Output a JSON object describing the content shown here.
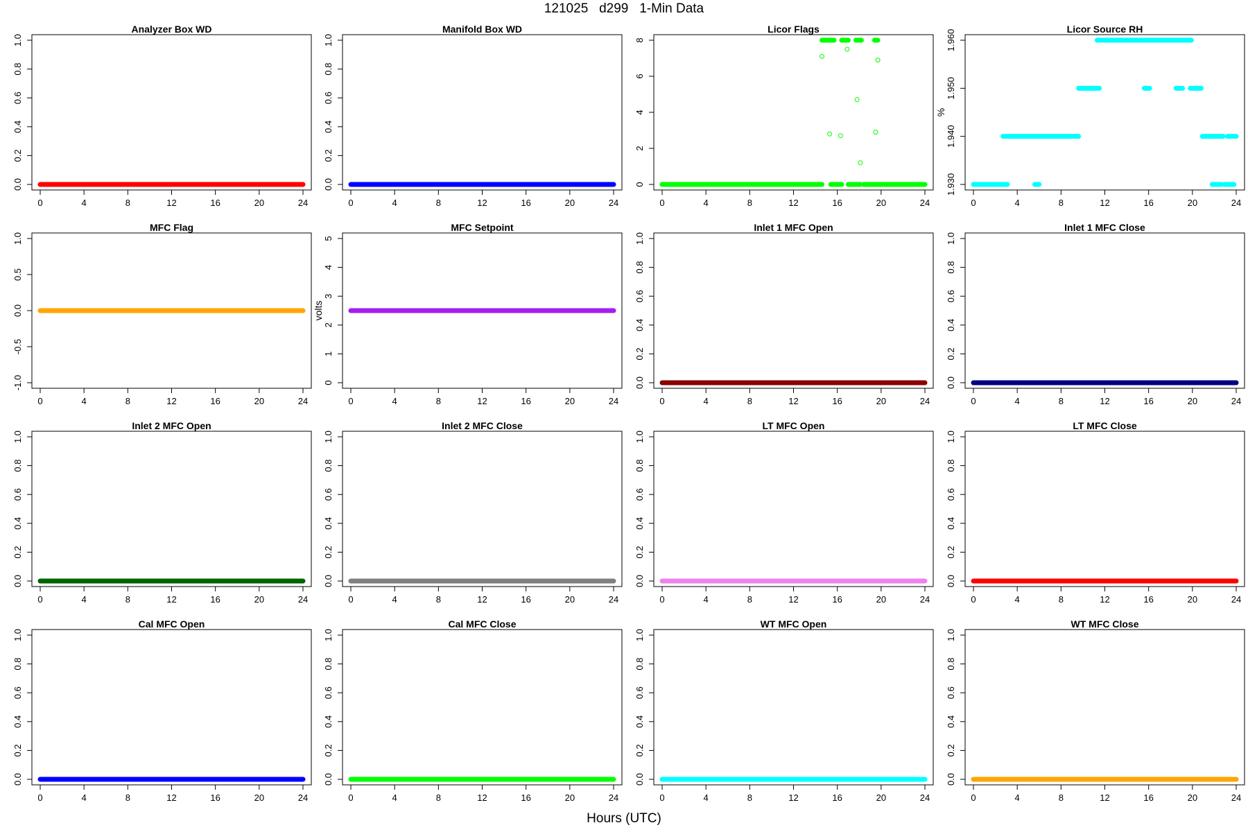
{
  "figure": {
    "title": "121025   d299   1-Min Data",
    "xlabel": "Hours (UTC)"
  },
  "chart_data": [
    {
      "type": "scatter",
      "title": "Analyzer Box WD",
      "ylabel": "",
      "color": "#ff0000",
      "xlim": [
        0,
        24
      ],
      "ylim": [
        0,
        1
      ],
      "xticks": [
        "0",
        "4",
        "8",
        "12",
        "16",
        "20",
        "24"
      ],
      "yticks": [
        "0.0",
        "0.2",
        "0.4",
        "0.6",
        "0.8",
        "1.0"
      ],
      "segments": [
        {
          "x": [
            0,
            24
          ],
          "y": 0
        }
      ],
      "points": []
    },
    {
      "type": "scatter",
      "title": "Manifold Box WD",
      "ylabel": "",
      "color": "#0000ff",
      "xlim": [
        0,
        24
      ],
      "ylim": [
        0,
        1
      ],
      "xticks": [
        "0",
        "4",
        "8",
        "12",
        "16",
        "20",
        "24"
      ],
      "yticks": [
        "0.0",
        "0.2",
        "0.4",
        "0.6",
        "0.8",
        "1.0"
      ],
      "segments": [
        {
          "x": [
            0,
            24
          ],
          "y": 0
        }
      ],
      "points": []
    },
    {
      "type": "scatter",
      "title": "Licor Flags",
      "ylabel": "",
      "color": "#00ff00",
      "xlim": [
        0,
        24
      ],
      "ylim": [
        0,
        8
      ],
      "xticks": [
        "0",
        "4",
        "8",
        "12",
        "16",
        "20",
        "24"
      ],
      "yticks": [
        "0",
        "2",
        "4",
        "6",
        "8"
      ],
      "segments": [
        {
          "x": [
            0,
            14.6
          ],
          "y": 0
        },
        {
          "x": [
            15.4,
            16.4
          ],
          "y": 0
        },
        {
          "x": [
            17.0,
            18.1
          ],
          "y": 0
        },
        {
          "x": [
            18.4,
            24
          ],
          "y": 0
        },
        {
          "x": [
            14.6,
            15.7
          ],
          "y": 8
        },
        {
          "x": [
            16.4,
            17.0
          ],
          "y": 8
        },
        {
          "x": [
            17.7,
            18.2
          ],
          "y": 8
        },
        {
          "x": [
            19.4,
            19.7
          ],
          "y": 8
        }
      ],
      "points": [
        {
          "x": 14.6,
          "y": 7.1
        },
        {
          "x": 15.3,
          "y": 2.8
        },
        {
          "x": 16.3,
          "y": 2.7
        },
        {
          "x": 16.9,
          "y": 7.5
        },
        {
          "x": 17.8,
          "y": 4.7
        },
        {
          "x": 18.1,
          "y": 1.2
        },
        {
          "x": 19.5,
          "y": 2.9
        },
        {
          "x": 19.7,
          "y": 6.9
        }
      ]
    },
    {
      "type": "scatter",
      "title": "Licor Source RH",
      "ylabel": "%",
      "color": "#00ffff",
      "xlim": [
        0,
        24
      ],
      "ylim": [
        1.93,
        1.96
      ],
      "xticks": [
        "0",
        "4",
        "8",
        "12",
        "16",
        "20",
        "24"
      ],
      "yticks": [
        "1.930",
        "1.940",
        "1.950",
        "1.960"
      ],
      "segments": [
        {
          "x": [
            0,
            3.1
          ],
          "y": 1.93
        },
        {
          "x": [
            5.6,
            6.0
          ],
          "y": 1.93
        },
        {
          "x": [
            21.8,
            22.6
          ],
          "y": 1.93
        },
        {
          "x": [
            22.9,
            23.8
          ],
          "y": 1.93
        },
        {
          "x": [
            2.7,
            9.6
          ],
          "y": 1.94
        },
        {
          "x": [
            20.9,
            22.2
          ],
          "y": 1.94
        },
        {
          "x": [
            22.4,
            22.8
          ],
          "y": 1.94
        },
        {
          "x": [
            23.2,
            24.0
          ],
          "y": 1.94
        },
        {
          "x": [
            9.6,
            11.5
          ],
          "y": 1.95
        },
        {
          "x": [
            15.6,
            16.1
          ],
          "y": 1.95
        },
        {
          "x": [
            18.5,
            19.1
          ],
          "y": 1.95
        },
        {
          "x": [
            19.8,
            20.8
          ],
          "y": 1.95
        },
        {
          "x": [
            11.3,
            19.9
          ],
          "y": 1.96
        }
      ],
      "points": []
    },
    {
      "type": "scatter",
      "title": "MFC Flag",
      "ylabel": "",
      "color": "#ffa500",
      "xlim": [
        0,
        24
      ],
      "ylim": [
        -1,
        1
      ],
      "xticks": [
        "0",
        "4",
        "8",
        "12",
        "16",
        "20",
        "24"
      ],
      "yticks": [
        "-1.0",
        "-0.5",
        "0.0",
        "0.5",
        "1.0"
      ],
      "segments": [
        {
          "x": [
            0,
            24
          ],
          "y": 0
        }
      ],
      "points": []
    },
    {
      "type": "scatter",
      "title": "MFC Setpoint",
      "ylabel": "volts",
      "color": "#a020f0",
      "xlim": [
        0,
        24
      ],
      "ylim": [
        0,
        5
      ],
      "xticks": [
        "0",
        "4",
        "8",
        "12",
        "16",
        "20",
        "24"
      ],
      "yticks": [
        "0",
        "1",
        "2",
        "3",
        "4",
        "5"
      ],
      "segments": [
        {
          "x": [
            0,
            24
          ],
          "y": 2.5
        }
      ],
      "points": []
    },
    {
      "type": "scatter",
      "title": "Inlet 1 MFC Open",
      "ylabel": "",
      "color": "#8b0000",
      "xlim": [
        0,
        24
      ],
      "ylim": [
        0,
        1
      ],
      "xticks": [
        "0",
        "4",
        "8",
        "12",
        "16",
        "20",
        "24"
      ],
      "yticks": [
        "0.0",
        "0.2",
        "0.4",
        "0.6",
        "0.8",
        "1.0"
      ],
      "segments": [
        {
          "x": [
            0,
            24
          ],
          "y": 0
        }
      ],
      "points": []
    },
    {
      "type": "scatter",
      "title": "Inlet 1 MFC Close",
      "ylabel": "",
      "color": "#000080",
      "xlim": [
        0,
        24
      ],
      "ylim": [
        0,
        1
      ],
      "xticks": [
        "0",
        "4",
        "8",
        "12",
        "16",
        "20",
        "24"
      ],
      "yticks": [
        "0.0",
        "0.2",
        "0.4",
        "0.6",
        "0.8",
        "1.0"
      ],
      "segments": [
        {
          "x": [
            0,
            24
          ],
          "y": 0
        }
      ],
      "points": []
    },
    {
      "type": "scatter",
      "title": "Inlet 2 MFC Open",
      "ylabel": "",
      "color": "#006400",
      "xlim": [
        0,
        24
      ],
      "ylim": [
        0,
        1
      ],
      "xticks": [
        "0",
        "4",
        "8",
        "12",
        "16",
        "20",
        "24"
      ],
      "yticks": [
        "0.0",
        "0.2",
        "0.4",
        "0.6",
        "0.8",
        "1.0"
      ],
      "segments": [
        {
          "x": [
            0,
            24
          ],
          "y": 0
        }
      ],
      "points": []
    },
    {
      "type": "scatter",
      "title": "Inlet 2 MFC Close",
      "ylabel": "",
      "color": "#808080",
      "xlim": [
        0,
        24
      ],
      "ylim": [
        0,
        1
      ],
      "xticks": [
        "0",
        "4",
        "8",
        "12",
        "16",
        "20",
        "24"
      ],
      "yticks": [
        "0.0",
        "0.2",
        "0.4",
        "0.6",
        "0.8",
        "1.0"
      ],
      "segments": [
        {
          "x": [
            0,
            24
          ],
          "y": 0
        }
      ],
      "points": []
    },
    {
      "type": "scatter",
      "title": "LT MFC Open",
      "ylabel": "",
      "color": "#ee82ee",
      "xlim": [
        0,
        24
      ],
      "ylim": [
        0,
        1
      ],
      "xticks": [
        "0",
        "4",
        "8",
        "12",
        "16",
        "20",
        "24"
      ],
      "yticks": [
        "0.0",
        "0.2",
        "0.4",
        "0.6",
        "0.8",
        "1.0"
      ],
      "segments": [
        {
          "x": [
            0,
            24
          ],
          "y": 0
        }
      ],
      "points": []
    },
    {
      "type": "scatter",
      "title": "LT MFC Close",
      "ylabel": "",
      "color": "#ff0000",
      "xlim": [
        0,
        24
      ],
      "ylim": [
        0,
        1
      ],
      "xticks": [
        "0",
        "4",
        "8",
        "12",
        "16",
        "20",
        "24"
      ],
      "yticks": [
        "0.0",
        "0.2",
        "0.4",
        "0.6",
        "0.8",
        "1.0"
      ],
      "segments": [
        {
          "x": [
            0,
            24
          ],
          "y": 0
        }
      ],
      "points": []
    },
    {
      "type": "scatter",
      "title": "Cal MFC Open",
      "ylabel": "",
      "color": "#0000ff",
      "xlim": [
        0,
        24
      ],
      "ylim": [
        0,
        1
      ],
      "xticks": [
        "0",
        "4",
        "8",
        "12",
        "16",
        "20",
        "24"
      ],
      "yticks": [
        "0.0",
        "0.2",
        "0.4",
        "0.6",
        "0.8",
        "1.0"
      ],
      "segments": [
        {
          "x": [
            0,
            24
          ],
          "y": 0
        }
      ],
      "points": []
    },
    {
      "type": "scatter",
      "title": "Cal MFC Close",
      "ylabel": "",
      "color": "#00ff00",
      "xlim": [
        0,
        24
      ],
      "ylim": [
        0,
        1
      ],
      "xticks": [
        "0",
        "4",
        "8",
        "12",
        "16",
        "20",
        "24"
      ],
      "yticks": [
        "0.0",
        "0.2",
        "0.4",
        "0.6",
        "0.8",
        "1.0"
      ],
      "segments": [
        {
          "x": [
            0,
            24
          ],
          "y": 0
        }
      ],
      "points": []
    },
    {
      "type": "scatter",
      "title": "WT MFC Open",
      "ylabel": "",
      "color": "#00ffff",
      "xlim": [
        0,
        24
      ],
      "ylim": [
        0,
        1
      ],
      "xticks": [
        "0",
        "4",
        "8",
        "12",
        "16",
        "20",
        "24"
      ],
      "yticks": [
        "0.0",
        "0.2",
        "0.4",
        "0.6",
        "0.8",
        "1.0"
      ],
      "segments": [
        {
          "x": [
            0,
            24
          ],
          "y": 0
        }
      ],
      "points": []
    },
    {
      "type": "scatter",
      "title": "WT MFC Close",
      "ylabel": "",
      "color": "#ffa500",
      "xlim": [
        0,
        24
      ],
      "ylim": [
        0,
        1
      ],
      "xticks": [
        "0",
        "4",
        "8",
        "12",
        "16",
        "20",
        "24"
      ],
      "yticks": [
        "0.0",
        "0.2",
        "0.4",
        "0.6",
        "0.8",
        "1.0"
      ],
      "segments": [
        {
          "x": [
            0,
            24
          ],
          "y": 0
        }
      ],
      "points": []
    }
  ]
}
